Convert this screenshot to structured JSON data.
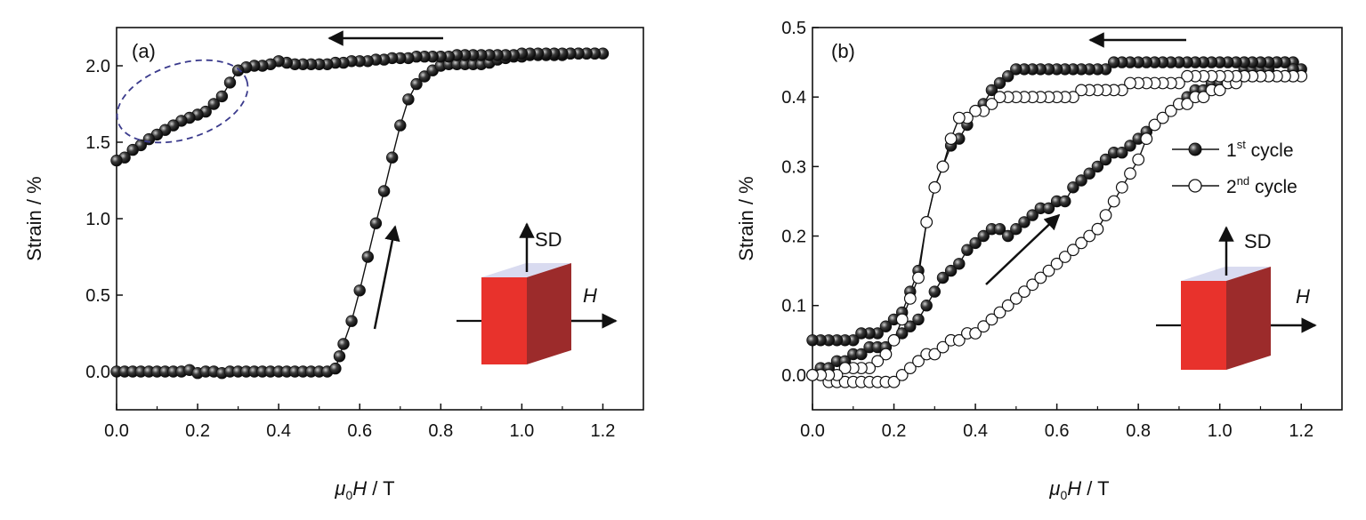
{
  "chart_data": [
    {
      "type": "line",
      "panel_label": "(a)",
      "xlabel": "μ0H / T",
      "ylabel": "Strain / %",
      "xlim": [
        0.0,
        1.3
      ],
      "ylim": [
        -0.25,
        2.25
      ],
      "xticks": [
        "0.0",
        "0.2",
        "0.4",
        "0.6",
        "0.8",
        "1.0",
        "1.2"
      ],
      "yticks": [
        "0.0",
        "0.5",
        "1.0",
        "1.5",
        "2.0"
      ],
      "series": [
        {
          "marker": "filled",
          "x": [
            0.0,
            0.02,
            0.04,
            0.06,
            0.08,
            0.1,
            0.12,
            0.14,
            0.16,
            0.18,
            0.2,
            0.22,
            0.24,
            0.26,
            0.28,
            0.3,
            0.32,
            0.34,
            0.36,
            0.38,
            0.4,
            0.42,
            0.44,
            0.46,
            0.48,
            0.5,
            0.52,
            0.54,
            0.55,
            0.56,
            0.58,
            0.6,
            0.62,
            0.64,
            0.66,
            0.68,
            0.7,
            0.72,
            0.74,
            0.76,
            0.78,
            0.8,
            0.82,
            0.84,
            0.86,
            0.88,
            0.9,
            0.92,
            0.94,
            0.96,
            0.98,
            1.0,
            1.02,
            1.04,
            1.06,
            1.08,
            1.1,
            1.12,
            1.14,
            1.16,
            1.18,
            1.2,
            1.18,
            1.16,
            1.14,
            1.12,
            1.1,
            1.08,
            1.06,
            1.04,
            1.02,
            1.0,
            0.98,
            0.96,
            0.94,
            0.92,
            0.9,
            0.88,
            0.86,
            0.84,
            0.82,
            0.8,
            0.78,
            0.76,
            0.74,
            0.72,
            0.7,
            0.68,
            0.66,
            0.64,
            0.62,
            0.6,
            0.58,
            0.56,
            0.54,
            0.52,
            0.5,
            0.48,
            0.46,
            0.44,
            0.42,
            0.4,
            0.38,
            0.36,
            0.34,
            0.32,
            0.3,
            0.28,
            0.26,
            0.24,
            0.22,
            0.2,
            0.18,
            0.16,
            0.14,
            0.12,
            0.1,
            0.08,
            0.06,
            0.04,
            0.02,
            0.0
          ],
          "y": [
            0.0,
            0.0,
            0.0,
            0.0,
            0.0,
            0.0,
            0.0,
            0.0,
            0.0,
            0.01,
            -0.01,
            0.0,
            0.0,
            -0.01,
            0.0,
            0.0,
            0.0,
            0.0,
            0.0,
            0.0,
            0.0,
            0.0,
            0.0,
            0.0,
            0.0,
            0.0,
            0.0,
            0.02,
            0.1,
            0.18,
            0.33,
            0.53,
            0.75,
            0.97,
            1.18,
            1.4,
            1.61,
            1.78,
            1.88,
            1.93,
            1.97,
            2.0,
            2.01,
            2.01,
            2.01,
            2.01,
            2.01,
            2.02,
            2.04,
            2.05,
            2.06,
            2.06,
            2.07,
            2.07,
            2.07,
            2.07,
            2.07,
            2.08,
            2.08,
            2.08,
            2.08,
            2.08,
            2.08,
            2.08,
            2.08,
            2.08,
            2.08,
            2.08,
            2.08,
            2.08,
            2.08,
            2.08,
            2.07,
            2.07,
            2.07,
            2.07,
            2.07,
            2.07,
            2.07,
            2.07,
            2.06,
            2.06,
            2.06,
            2.06,
            2.06,
            2.05,
            2.05,
            2.05,
            2.04,
            2.04,
            2.03,
            2.03,
            2.03,
            2.02,
            2.02,
            2.01,
            2.01,
            2.01,
            2.01,
            2.01,
            2.02,
            2.03,
            2.01,
            2.0,
            2.0,
            1.99,
            1.97,
            1.89,
            1.8,
            1.75,
            1.7,
            1.68,
            1.66,
            1.64,
            1.61,
            1.58,
            1.55,
            1.52,
            1.48,
            1.45,
            1.4,
            1.38
          ]
        }
      ],
      "insets": [
        {
          "kind": "shape",
          "color": "#e8322c"
        },
        {
          "kind": "text",
          "text": "SD"
        },
        {
          "kind": "text",
          "text": "H"
        }
      ],
      "colors": {
        "cube_front": "#e8322c",
        "cube_side": "#9c2b2b",
        "cube_top": "#d9dbf0",
        "ellipse": "#3a3a8c"
      }
    },
    {
      "type": "line",
      "panel_label": "(b)",
      "xlabel": "μ0H / T",
      "ylabel": "Strain / %",
      "xlim": [
        0.0,
        1.3
      ],
      "ylim": [
        -0.05,
        0.5
      ],
      "xticks": [
        "0.0",
        "0.2",
        "0.4",
        "0.6",
        "0.8",
        "1.0",
        "1.2"
      ],
      "yticks": [
        "0.0",
        "0.1",
        "0.2",
        "0.3",
        "0.4",
        "0.5"
      ],
      "series": [
        {
          "name_main": "1",
          "name_sup": "st",
          "name_rest": " cycle",
          "marker": "filled",
          "x": [
            0.0,
            0.02,
            0.04,
            0.06,
            0.08,
            0.1,
            0.12,
            0.14,
            0.16,
            0.18,
            0.2,
            0.22,
            0.24,
            0.26,
            0.28,
            0.3,
            0.32,
            0.34,
            0.36,
            0.38,
            0.4,
            0.42,
            0.44,
            0.46,
            0.48,
            0.5,
            0.52,
            0.54,
            0.56,
            0.58,
            0.6,
            0.62,
            0.64,
            0.66,
            0.68,
            0.7,
            0.72,
            0.74,
            0.76,
            0.78,
            0.8,
            0.82,
            0.84,
            0.86,
            0.88,
            0.9,
            0.92,
            0.94,
            0.96,
            0.98,
            1.0,
            1.02,
            1.04,
            1.06,
            1.08,
            1.1,
            1.12,
            1.14,
            1.16,
            1.18,
            1.2,
            1.18,
            1.16,
            1.14,
            1.12,
            1.1,
            1.08,
            1.06,
            1.04,
            1.02,
            1.0,
            0.98,
            0.96,
            0.94,
            0.92,
            0.9,
            0.88,
            0.86,
            0.84,
            0.82,
            0.8,
            0.78,
            0.76,
            0.74,
            0.72,
            0.7,
            0.68,
            0.66,
            0.64,
            0.62,
            0.6,
            0.58,
            0.56,
            0.54,
            0.52,
            0.5,
            0.48,
            0.46,
            0.44,
            0.42,
            0.4,
            0.38,
            0.36,
            0.34,
            0.32,
            0.3,
            0.28,
            0.26,
            0.24,
            0.22,
            0.2,
            0.18,
            0.16,
            0.14,
            0.12,
            0.1,
            0.08,
            0.06,
            0.04,
            0.02,
            0.0
          ],
          "y": [
            0.0,
            0.01,
            0.01,
            0.02,
            0.02,
            0.03,
            0.03,
            0.04,
            0.04,
            0.04,
            0.05,
            0.06,
            0.07,
            0.08,
            0.1,
            0.12,
            0.14,
            0.15,
            0.16,
            0.18,
            0.19,
            0.2,
            0.21,
            0.21,
            0.2,
            0.21,
            0.22,
            0.23,
            0.24,
            0.24,
            0.25,
            0.25,
            0.27,
            0.28,
            0.29,
            0.3,
            0.31,
            0.32,
            0.32,
            0.33,
            0.34,
            0.35,
            0.36,
            0.37,
            0.38,
            0.39,
            0.4,
            0.41,
            0.41,
            0.42,
            0.42,
            0.43,
            0.43,
            0.44,
            0.44,
            0.44,
            0.44,
            0.45,
            0.45,
            0.45,
            0.44,
            0.44,
            0.45,
            0.45,
            0.45,
            0.45,
            0.45,
            0.45,
            0.45,
            0.45,
            0.45,
            0.45,
            0.45,
            0.45,
            0.45,
            0.45,
            0.45,
            0.45,
            0.45,
            0.45,
            0.45,
            0.45,
            0.45,
            0.45,
            0.44,
            0.44,
            0.44,
            0.44,
            0.44,
            0.44,
            0.44,
            0.44,
            0.44,
            0.44,
            0.44,
            0.44,
            0.43,
            0.42,
            0.41,
            0.39,
            0.38,
            0.36,
            0.34,
            0.33,
            0.3,
            0.27,
            0.22,
            0.15,
            0.12,
            0.09,
            0.08,
            0.07,
            0.06,
            0.06,
            0.06,
            0.05,
            0.05,
            0.05,
            0.05,
            0.05,
            0.05
          ]
        },
        {
          "name_main": "2",
          "name_sup": "nd",
          "name_rest": " cycle",
          "marker": "open",
          "x": [
            0.0,
            0.02,
            0.04,
            0.06,
            0.08,
            0.1,
            0.12,
            0.14,
            0.16,
            0.18,
            0.2,
            0.22,
            0.24,
            0.26,
            0.28,
            0.3,
            0.32,
            0.34,
            0.36,
            0.38,
            0.4,
            0.42,
            0.44,
            0.46,
            0.48,
            0.5,
            0.52,
            0.54,
            0.56,
            0.58,
            0.6,
            0.62,
            0.64,
            0.66,
            0.68,
            0.7,
            0.72,
            0.74,
            0.76,
            0.78,
            0.8,
            0.82,
            0.84,
            0.86,
            0.88,
            0.9,
            0.92,
            0.94,
            0.96,
            0.98,
            1.0,
            1.02,
            1.04,
            1.06,
            1.08,
            1.1,
            1.12,
            1.14,
            1.16,
            1.18,
            1.2,
            1.18,
            1.16,
            1.14,
            1.12,
            1.1,
            1.08,
            1.06,
            1.04,
            1.02,
            1.0,
            0.98,
            0.96,
            0.94,
            0.92,
            0.9,
            0.88,
            0.86,
            0.84,
            0.82,
            0.8,
            0.78,
            0.76,
            0.74,
            0.72,
            0.7,
            0.68,
            0.66,
            0.64,
            0.62,
            0.6,
            0.58,
            0.56,
            0.54,
            0.52,
            0.5,
            0.48,
            0.46,
            0.44,
            0.42,
            0.4,
            0.38,
            0.36,
            0.34,
            0.32,
            0.3,
            0.28,
            0.26,
            0.24,
            0.22,
            0.2,
            0.18,
            0.16,
            0.14,
            0.12,
            0.1,
            0.08,
            0.06,
            0.04,
            0.02,
            0.0
          ],
          "y": [
            0.0,
            0.0,
            -0.01,
            -0.01,
            -0.01,
            -0.01,
            -0.01,
            -0.01,
            -0.01,
            -0.01,
            -0.01,
            0.0,
            0.01,
            0.02,
            0.03,
            0.03,
            0.04,
            0.05,
            0.05,
            0.06,
            0.06,
            0.07,
            0.08,
            0.09,
            0.1,
            0.11,
            0.12,
            0.13,
            0.14,
            0.15,
            0.16,
            0.17,
            0.18,
            0.19,
            0.2,
            0.21,
            0.23,
            0.25,
            0.27,
            0.29,
            0.31,
            0.34,
            0.36,
            0.37,
            0.38,
            0.39,
            0.39,
            0.4,
            0.4,
            0.41,
            0.41,
            0.42,
            0.42,
            0.43,
            0.43,
            0.43,
            0.43,
            0.43,
            0.43,
            0.43,
            0.43,
            0.43,
            0.43,
            0.43,
            0.43,
            0.43,
            0.43,
            0.43,
            0.43,
            0.43,
            0.43,
            0.43,
            0.43,
            0.43,
            0.43,
            0.42,
            0.42,
            0.42,
            0.42,
            0.42,
            0.42,
            0.42,
            0.41,
            0.41,
            0.41,
            0.41,
            0.41,
            0.41,
            0.4,
            0.4,
            0.4,
            0.4,
            0.4,
            0.4,
            0.4,
            0.4,
            0.4,
            0.4,
            0.39,
            0.38,
            0.38,
            0.37,
            0.37,
            0.34,
            0.3,
            0.27,
            0.22,
            0.14,
            0.11,
            0.08,
            0.05,
            0.03,
            0.02,
            0.01,
            0.01,
            0.01,
            0.01,
            0.0,
            0.0,
            0.0,
            0.0
          ]
        }
      ],
      "insets": [
        {
          "kind": "shape",
          "color": "#e8322c"
        },
        {
          "kind": "text",
          "text": "SD"
        },
        {
          "kind": "text",
          "text": "H"
        }
      ],
      "colors": {
        "cube_front": "#e8322c",
        "cube_side": "#9c2b2b",
        "cube_top": "#d9dbf0"
      }
    }
  ]
}
